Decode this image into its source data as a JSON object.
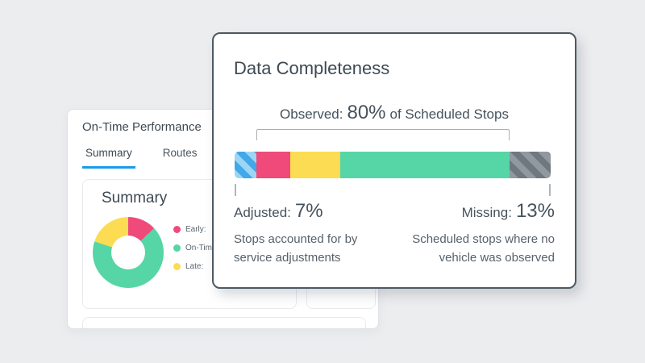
{
  "background_color": "#ecedef",
  "back_card": {
    "title": "On-Time Performance",
    "tabs": [
      {
        "label": "Summary",
        "active": true
      },
      {
        "label": "Routes",
        "active": false
      }
    ],
    "accent_color": "#1a9be8",
    "panel": {
      "title": "Summary",
      "legend": [
        {
          "label": "Early:",
          "color": "#ef4a7a"
        },
        {
          "label": "On-Time:",
          "color": "#56d5a6"
        },
        {
          "label": "Late:",
          "color": "#fcdc52"
        }
      ]
    }
  },
  "front_card": {
    "title": "Data Completeness",
    "border_color": "#4d5963",
    "observed": {
      "prefix": "Observed:",
      "value": "80%",
      "suffix": "of Scheduled Stops"
    },
    "adjusted": {
      "label": "Adjusted:",
      "value": "7%",
      "description": "Stops accounted for by service adjustments"
    },
    "missing": {
      "label": "Missing:",
      "value": "13%",
      "description": "Scheduled stops where no vehicle was observed"
    }
  },
  "chart_data": [
    {
      "type": "bar",
      "subtype": "horizontal-stacked",
      "title": "Data Completeness",
      "annotation_top": "Observed: 80% of Scheduled Stops",
      "annotation_bottom_left": "Adjusted: 7%",
      "annotation_bottom_right": "Missing: 13%",
      "observed_span_percent": [
        7,
        87
      ],
      "segments": [
        {
          "name": "Adjusted",
          "value": 7,
          "color": "#9ed5f3",
          "pattern": "diagonal-stripes",
          "stripe_color": "#42a8e8"
        },
        {
          "name": "Early (Observed)",
          "value": 10.5,
          "color": "#ef4a7a"
        },
        {
          "name": "Late (Observed)",
          "value": 16,
          "color": "#fcdc52"
        },
        {
          "name": "On-Time (Observed)",
          "value": 53.5,
          "color": "#56d5a6"
        },
        {
          "name": "Missing",
          "value": 13,
          "color": "#9098a0",
          "pattern": "diagonal-stripes",
          "stripe_color": "#6f7880"
        }
      ]
    },
    {
      "type": "pie",
      "subtype": "donut",
      "title": "Summary",
      "labels": [
        "Early",
        "On-Time",
        "Late"
      ],
      "values": [
        13,
        67,
        20
      ],
      "colors": [
        "#ef4a7a",
        "#56d5a6",
        "#fcdc52"
      ],
      "hole": 0.48,
      "legend_position": "right"
    }
  ]
}
